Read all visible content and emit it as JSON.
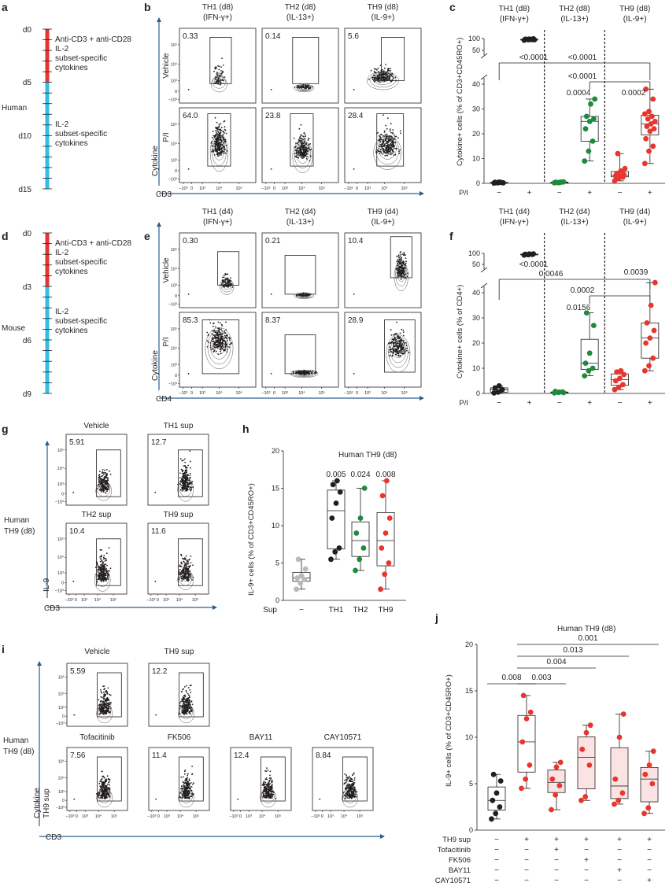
{
  "figure": {
    "panel_letters": [
      "a",
      "b",
      "c",
      "d",
      "e",
      "f",
      "g",
      "h",
      "i",
      "j"
    ],
    "colors": {
      "red": "#e8362f",
      "cyan": "#36bde6",
      "navy": "#2a5d8f",
      "green": "#1e8a3c",
      "grey": "#b9b9b9",
      "pink": "#fbe3e3",
      "text": "#231f20"
    }
  },
  "panel_a": {
    "days": [
      "d0",
      "d5",
      "d10",
      "d15"
    ],
    "species": "Human",
    "phase1": [
      "Anti-CD3 + anti-CD28",
      "IL-2",
      "subset-specific",
      "cytokines"
    ],
    "phase2": [
      "IL-2",
      "subset-specific",
      "cytokines"
    ]
  },
  "panel_d": {
    "days": [
      "d0",
      "d3",
      "d6",
      "d9"
    ],
    "species": "Mouse",
    "phase1": [
      "Anti-CD3 + anti-CD28",
      "IL-2",
      "subset-specific",
      "cytokines"
    ],
    "phase2": [
      "IL-2",
      "subset-specific",
      "cytokines"
    ]
  },
  "panel_b": {
    "cols": [
      {
        "subset": "TH1 (d8)",
        "cytokine": "(IFN-γ+)"
      },
      {
        "subset": "TH2 (d8)",
        "cytokine": "(IL-13+)"
      },
      {
        "subset": "TH9 (d8)",
        "cytokine": "(IL-9+)"
      }
    ],
    "rows": [
      "Vehicle",
      "P/I"
    ],
    "values": [
      [
        "0.33",
        "0.14",
        "5.6"
      ],
      [
        "64.0",
        "23.8",
        "28.4"
      ]
    ],
    "ylabel": "Cytokine",
    "xlabel": "CD3",
    "ticks": [
      "−10³",
      "0",
      "10³",
      "10⁴",
      "10⁵"
    ]
  },
  "panel_e": {
    "cols": [
      {
        "subset": "TH1 (d4)",
        "cytokine": "(IFN-γ+)"
      },
      {
        "subset": "TH2 (d4)",
        "cytokine": "(IL-13+)"
      },
      {
        "subset": "TH9 (d4)",
        "cytokine": "(IL-9+)"
      }
    ],
    "rows": [
      "Vehicle",
      "P/I"
    ],
    "values": [
      [
        "0.30",
        "0.21",
        "10.4"
      ],
      [
        "85.3",
        "8.37",
        "28.9"
      ]
    ],
    "ylabel": "Cytokine",
    "xlabel": "CD4",
    "ticks": [
      "−10³",
      "0",
      "10³",
      "10⁴",
      "10⁵"
    ]
  },
  "panel_g": {
    "labels": [
      "Vehicle",
      "TH1 sup",
      "TH2 sup",
      "TH9 sup"
    ],
    "values": [
      "5.91",
      "12.7",
      "10.4",
      "11.6"
    ],
    "side_label": [
      "Human",
      "TH9 (d8)"
    ],
    "ylabel": "IL-9",
    "xlabel": "CD3",
    "ticks": [
      "−10³",
      "0",
      "10³",
      "10⁴",
      "10⁵"
    ]
  },
  "panel_i": {
    "top_labels": [
      "Vehicle",
      "TH9 sup"
    ],
    "top_values": [
      "5.59",
      "12.2"
    ],
    "bottom_labels": [
      "Tofacitinib",
      "FK506",
      "BAY11",
      "CAY10571"
    ],
    "bottom_values": [
      "7.56",
      "11.4",
      "12.4",
      "8.84"
    ],
    "side_label": [
      "Human",
      "TH9 (d8)"
    ],
    "ylabel": "Cytokine",
    "ylabel2": "TH9 sup",
    "xlabel": "CD3",
    "ticks": [
      "−10³",
      "0",
      "10³",
      "10⁴",
      "10⁵"
    ]
  },
  "chart_data": [
    {
      "panel": "c",
      "type": "box",
      "ylabel": "Cytokine+ cells (% of CD3+CD45RO+)",
      "yticks": [
        0,
        10,
        20,
        30,
        40,
        50,
        100
      ],
      "groups": [
        {
          "subset": "TH1 (d8)",
          "cytokine": "(IFN-γ+)"
        },
        {
          "subset": "TH2 (d8)",
          "cytokine": "(IL-13+)"
        },
        {
          "subset": "TH9 (d8)",
          "cytokine": "(IL-9+)"
        }
      ],
      "x_label": "P/I",
      "x_signs": [
        "−",
        "+",
        "−",
        "+",
        "−",
        "+"
      ],
      "boxes": [
        {
          "group": "TH1",
          "pi": "−",
          "color": "black",
          "values": [
            0.1,
            0.2,
            0.3,
            0.4,
            0.5,
            0.2,
            0.3,
            0.4
          ]
        },
        {
          "group": "TH1",
          "pi": "+",
          "color": "black",
          "values": [
            93,
            95,
            96,
            97,
            98,
            99,
            97,
            96,
            95
          ]
        },
        {
          "group": "TH2",
          "pi": "−",
          "color": "green",
          "values": [
            0.2,
            0.3,
            0.5,
            0.4,
            0.3,
            0.6,
            0.4,
            0.5
          ]
        },
        {
          "group": "TH2",
          "pi": "+",
          "color": "green",
          "values": [
            9,
            13,
            17,
            22,
            25,
            26,
            27,
            32,
            34
          ]
        },
        {
          "group": "TH9",
          "pi": "−",
          "color": "red",
          "values": [
            1,
            2,
            2.5,
            3,
            3,
            3.5,
            4,
            5,
            6,
            12
          ]
        },
        {
          "group": "TH9",
          "pi": "+",
          "color": "red",
          "values": [
            8,
            13,
            15,
            18,
            21,
            22,
            23,
            24,
            25,
            26,
            27,
            28,
            29,
            34,
            38
          ]
        }
      ],
      "annotations": [
        "<0.0001",
        "<0.0001",
        "<0.0001",
        "0.0004",
        "0.0002"
      ]
    },
    {
      "panel": "f",
      "type": "box",
      "ylabel": "Cytokine+ cells (% of CD4+)",
      "yticks": [
        0,
        10,
        20,
        30,
        40,
        50,
        100
      ],
      "groups": [
        {
          "subset": "TH1 (d4)",
          "cytokine": "(IFN-γ+)"
        },
        {
          "subset": "TH2 (d4)",
          "cytokine": "(IL-13+)"
        },
        {
          "subset": "TH9 (d4)",
          "cytokine": "(IL-9+)"
        }
      ],
      "x_label": "P/I",
      "x_signs": [
        "−",
        "+",
        "−",
        "+",
        "−",
        "+"
      ],
      "boxes": [
        {
          "group": "TH1",
          "pi": "−",
          "color": "black",
          "values": [
            0.2,
            0.5,
            1.5,
            2.2,
            3
          ]
        },
        {
          "group": "TH1",
          "pi": "+",
          "color": "black",
          "values": [
            92,
            94,
            95,
            96,
            97,
            98
          ]
        },
        {
          "group": "TH2",
          "pi": "−",
          "color": "green",
          "values": [
            0.2,
            0.4,
            0.6,
            0.8,
            0.5,
            0.3
          ]
        },
        {
          "group": "TH2",
          "pi": "+",
          "color": "green",
          "values": [
            7,
            9,
            10,
            12,
            16,
            27,
            32
          ]
        },
        {
          "group": "TH9",
          "pi": "−",
          "color": "red",
          "values": [
            1.5,
            2.5,
            3.5,
            5,
            6,
            7.5,
            8.5,
            9
          ]
        },
        {
          "group": "TH9",
          "pi": "+",
          "color": "red",
          "values": [
            9,
            11,
            14,
            20,
            22,
            25,
            28,
            35,
            44
          ]
        }
      ],
      "annotations": [
        "<0.0001",
        "0.0046",
        "0.0002",
        "0.0156",
        "0.0039"
      ]
    },
    {
      "panel": "h",
      "type": "box",
      "title": "Human TH9 (d8)",
      "ylabel": "IL-9+ cells (% of CD3+CD45RO+)",
      "ylim": [
        0,
        20
      ],
      "yticks": [
        0,
        5,
        10,
        15,
        20
      ],
      "categories": [
        "−",
        "TH1",
        "TH2",
        "TH9"
      ],
      "x_label": "Sup",
      "boxes": [
        {
          "name": "−",
          "color": "grey",
          "values": [
            1.5,
            2.3,
            2.8,
            3.0,
            3.3,
            4.2,
            5.5
          ]
        },
        {
          "name": "TH1",
          "color": "black",
          "values": [
            5.5,
            6.5,
            7,
            11,
            13,
            14.5,
            15.5,
            16
          ]
        },
        {
          "name": "TH2",
          "color": "green",
          "values": [
            4,
            5.5,
            7,
            9,
            11,
            15
          ]
        },
        {
          "name": "TH9",
          "color": "red",
          "values": [
            1.5,
            3.5,
            5,
            7,
            9,
            11,
            14,
            16
          ]
        }
      ],
      "annotations": [
        "0.005",
        "0.024",
        "0.008"
      ]
    },
    {
      "panel": "j",
      "type": "box",
      "title": "Human TH9 (d8)",
      "ylabel": "IL-9+ cells (% of CD3+CD45RO+)",
      "ylim": [
        0,
        20
      ],
      "yticks": [
        0,
        5,
        10,
        15,
        20
      ],
      "condition_rows": [
        {
          "label": "TH9 sup",
          "signs": [
            "−",
            "+",
            "+",
            "+",
            "+",
            "+"
          ]
        },
        {
          "label": "Tofacitinib",
          "signs": [
            "−",
            "−",
            "+",
            "−",
            "−",
            "−"
          ]
        },
        {
          "label": "FK506",
          "signs": [
            "−",
            "−",
            "−",
            "+",
            "−",
            "−"
          ]
        },
        {
          "label": "BAY11",
          "signs": [
            "−",
            "−",
            "−",
            "−",
            "+",
            "−"
          ]
        },
        {
          "label": "CAY10571",
          "signs": [
            "−",
            "−",
            "−",
            "−",
            "−",
            "+"
          ]
        }
      ],
      "boxes": [
        {
          "color": "black",
          "values": [
            1.2,
            1.8,
            2.5,
            3.2,
            4,
            5.3,
            6
          ]
        },
        {
          "color": "red",
          "values": [
            4.5,
            5.5,
            7,
            9.5,
            12,
            12.7,
            14.5
          ]
        },
        {
          "color": "red",
          "values": [
            2.2,
            3.8,
            4.8,
            5.5,
            6.8,
            7.3
          ]
        },
        {
          "color": "red",
          "values": [
            3.2,
            3.6,
            7,
            8.7,
            10.5,
            11.3
          ]
        },
        {
          "color": "red",
          "values": [
            2.8,
            3.2,
            4,
            5.5,
            10,
            12.5
          ]
        },
        {
          "color": "red",
          "values": [
            1.8,
            2.4,
            5,
            6,
            7,
            8.5
          ]
        }
      ],
      "annotations": [
        "0.008",
        "0.003",
        "0.004",
        "0.013",
        "0.001"
      ]
    }
  ]
}
